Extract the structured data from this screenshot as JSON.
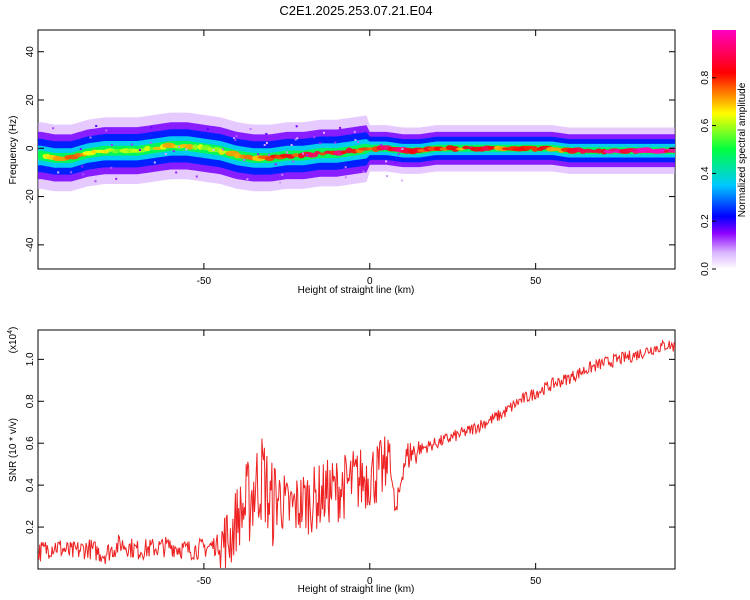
{
  "title": "C2E1.2025.253.07.21.E04",
  "chart_data": [
    {
      "type": "heatmap",
      "xlabel": "Height of straight line (km)",
      "ylabel": "Frequency (Hz)",
      "xlim": [
        -100,
        92
      ],
      "ylim": [
        -50,
        49
      ],
      "xticks": [
        "-50",
        "0",
        "50"
      ],
      "yticks": [
        "-40",
        "-20",
        "0",
        "20",
        "40"
      ],
      "grid": false,
      "ridge": {
        "x": [
          -99,
          -95,
          -90,
          -85,
          -80,
          -75,
          -70,
          -65,
          -60,
          -55,
          -50,
          -45,
          -40,
          -35,
          -30,
          -25,
          -20,
          -15,
          -10,
          -5,
          0,
          5,
          10,
          15,
          20,
          25,
          30,
          35,
          40,
          45,
          50,
          55,
          60,
          65,
          70,
          75,
          80,
          85,
          90
        ],
        "freq": [
          -3,
          -4,
          -4,
          -2,
          -1,
          -1,
          -1,
          0,
          1,
          1,
          0,
          -1,
          -3,
          -4,
          -4,
          -3,
          -3,
          -2,
          -2,
          -1,
          0,
          0,
          -1,
          -1,
          0,
          0,
          0,
          0,
          0,
          0,
          0,
          0,
          -1,
          -1,
          -1,
          -1,
          -1,
          -1,
          -1
        ],
        "amplitude": [
          0.6,
          0.7,
          0.75,
          0.7,
          0.65,
          0.6,
          0.6,
          0.65,
          0.7,
          0.7,
          0.65,
          0.7,
          0.7,
          0.75,
          0.8,
          0.85,
          0.85,
          0.9,
          0.9,
          0.85,
          0.8,
          0.9,
          0.95,
          0.85,
          0.8,
          0.8,
          0.85,
          0.85,
          0.8,
          0.8,
          0.8,
          0.8,
          0.85,
          0.9,
          0.95,
          1.0,
          1.0,
          1.0,
          1.0
        ]
      },
      "colorbar": {
        "label": "Normalized spectral amplitude",
        "ticks": [
          "0.0",
          "0.2",
          "0.4",
          "0.6",
          "0.8"
        ],
        "range": [
          0,
          1
        ],
        "colormap": [
          "#ffffff",
          "#b400ff",
          "#0000ff",
          "#00ffff",
          "#00ff00",
          "#ffff00",
          "#ff0000",
          "#ff00ff"
        ]
      }
    },
    {
      "type": "line",
      "xlabel": "Height of straight line (km)",
      "ylabel": "SNR (10 * v/v)",
      "ylabel_scale": "(x10",
      "ylabel_exp": "4",
      "xlim": [
        -100,
        92
      ],
      "ylim": [
        0,
        1.14
      ],
      "xticks": [
        "-50",
        "0",
        "50"
      ],
      "yticks": [
        "0.2",
        "0.4",
        "0.6",
        "0.8",
        "1.0"
      ],
      "grid": false,
      "series": [
        {
          "color": "#ee2222",
          "x": [
            -100,
            -95,
            -90,
            -85,
            -80,
            -75,
            -70,
            -65,
            -60,
            -55,
            -50,
            -45,
            -42,
            -40,
            -37,
            -35,
            -32,
            -30,
            -27,
            -25,
            -22,
            -20,
            -17,
            -15,
            -12,
            -10,
            -7,
            -5,
            -2,
            0,
            3,
            5,
            6,
            7,
            8,
            10,
            12,
            15,
            20,
            25,
            30,
            35,
            40,
            45,
            50,
            55,
            60,
            65,
            70,
            75,
            80,
            85,
            90,
            92
          ],
          "y": [
            0.08,
            0.11,
            0.08,
            0.1,
            0.07,
            0.12,
            0.09,
            0.1,
            0.11,
            0.09,
            0.1,
            0.12,
            0.15,
            0.25,
            0.3,
            0.38,
            0.45,
            0.3,
            0.35,
            0.28,
            0.3,
            0.32,
            0.33,
            0.35,
            0.37,
            0.38,
            0.4,
            0.42,
            0.43,
            0.45,
            0.46,
            0.48,
            0.6,
            0.35,
            0.25,
            0.5,
            0.55,
            0.57,
            0.6,
            0.63,
            0.66,
            0.7,
            0.74,
            0.8,
            0.84,
            0.88,
            0.91,
            0.95,
            0.98,
            1.0,
            1.02,
            1.05,
            1.07,
            1.06
          ]
        }
      ]
    }
  ]
}
